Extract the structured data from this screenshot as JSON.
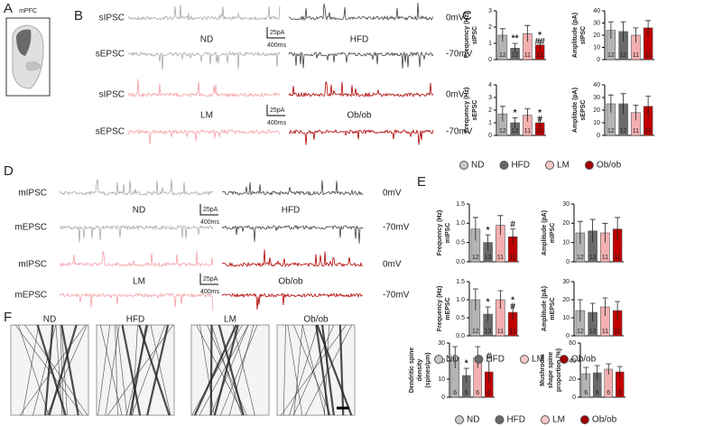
{
  "panel_labels": [
    "A",
    "B",
    "C",
    "D",
    "E",
    "F"
  ],
  "brain": {
    "label": "mPFC"
  },
  "traces": [
    {
      "rows": [
        "sIPSC",
        "sEPSC"
      ],
      "voltages": [
        "0mV",
        "-70mV"
      ],
      "groups": [
        "ND",
        "HFD"
      ],
      "scale_amp": "25pA",
      "scale_time": "400ms"
    },
    {
      "rows": [
        "sIPSC",
        "sEPSC"
      ],
      "voltages": [
        "0mV",
        "-70mV"
      ],
      "groups": [
        "LM",
        "Ob/ob"
      ],
      "scale_amp": "25pA",
      "scale_time": "400ms"
    },
    {
      "rows": [
        "mIPSC",
        "mEPSC"
      ],
      "voltages": [
        "0mV",
        "-70mV"
      ],
      "groups": [
        "ND",
        "HFD"
      ],
      "scale_amp": "25pA",
      "scale_time": "400ms"
    },
    {
      "rows": [
        "mIPSC",
        "mEPSC"
      ],
      "voltages": [
        "0mV",
        "-70mV"
      ],
      "groups": [
        "LM",
        "Ob/ob"
      ],
      "scale_amp": "25pA",
      "scale_time": "400ms"
    }
  ],
  "micrographs": [
    "ND",
    "HFD",
    "LM",
    "Ob/ob"
  ],
  "legends": [
    [
      {
        "label": "ND",
        "color": "#c8c8c8"
      },
      {
        "label": "HFD",
        "color": "#6a6a6a"
      },
      {
        "label": "LM",
        "color": "#f8c8c8"
      },
      {
        "label": "Ob/ob",
        "color": "#a00000"
      }
    ],
    [
      {
        "label": "ND",
        "color": "#c8c8c8"
      },
      {
        "label": "HFD",
        "color": "#6a6a6a"
      },
      {
        "label": "LM",
        "color": "#f8c8c8"
      },
      {
        "label": "Ob/ob",
        "color": "#a00000"
      }
    ],
    [
      {
        "label": "ND",
        "color": "#c8c8c8"
      },
      {
        "label": "HFD",
        "color": "#6a6a6a"
      },
      {
        "label": "LM",
        "color": "#f8c8c8"
      },
      {
        "label": "Ob/ob",
        "color": "#a00000"
      }
    ]
  ],
  "chart_data": [
    {
      "type": "bar",
      "ylabel": [
        "Frequency (Hz)",
        "sIPSC"
      ],
      "values": [
        1.5,
        0.7,
        1.6,
        0.9
      ],
      "errors": [
        0.4,
        0.3,
        0.5,
        0.3
      ],
      "colors": [
        "#b4b4b4",
        "#6a6a6a",
        "#f4b0b0",
        "#c00000"
      ],
      "n_labels": [
        12,
        12,
        11,
        11
      ],
      "annotations": [
        [],
        [
          "**"
        ],
        [],
        [
          "*",
          "##"
        ]
      ],
      "ylim": [
        0,
        3
      ],
      "yticks": [
        0,
        1,
        2,
        3
      ]
    },
    {
      "type": "bar",
      "ylabel": [
        "Amplitude (pA)",
        "sIPSC"
      ],
      "values": [
        24,
        23,
        20,
        26
      ],
      "errors": [
        7,
        8,
        6,
        6
      ],
      "colors": [
        "#b4b4b4",
        "#6a6a6a",
        "#f4b0b0",
        "#c00000"
      ],
      "n_labels": [
        12,
        12,
        11,
        11
      ],
      "annotations": [
        [],
        [],
        [],
        []
      ],
      "ylim": [
        0,
        40
      ],
      "yticks": [
        0,
        10,
        20,
        30,
        40
      ]
    },
    {
      "type": "bar",
      "ylabel": [
        "Frequency (Hz)",
        "sEPSC"
      ],
      "values": [
        1.7,
        1.0,
        1.6,
        1.0
      ],
      "errors": [
        0.6,
        0.4,
        0.5,
        0.4
      ],
      "colors": [
        "#b4b4b4",
        "#6a6a6a",
        "#f4b0b0",
        "#c00000"
      ],
      "n_labels": [
        12,
        12,
        11,
        11
      ],
      "annotations": [
        [],
        [
          "*"
        ],
        [],
        [
          "*",
          "#"
        ]
      ],
      "ylim": [
        0,
        4
      ],
      "yticks": [
        0,
        1,
        2,
        3,
        4
      ]
    },
    {
      "type": "bar",
      "ylabel": [
        "Amplitude (pA)",
        "sEPSC"
      ],
      "values": [
        25,
        25,
        18,
        23
      ],
      "errors": [
        7,
        8,
        6,
        8
      ],
      "colors": [
        "#b4b4b4",
        "#6a6a6a",
        "#f4b0b0",
        "#c00000"
      ],
      "n_labels": [
        12,
        12,
        11,
        11
      ],
      "annotations": [
        [],
        [],
        [],
        []
      ],
      "ylim": [
        0,
        40
      ],
      "yticks": [
        0,
        10,
        20,
        30,
        40
      ]
    },
    {
      "type": "bar",
      "ylabel": [
        "Frequency (Hz)",
        "mIPSC"
      ],
      "values": [
        0.85,
        0.5,
        0.95,
        0.65
      ],
      "errors": [
        0.3,
        0.2,
        0.25,
        0.2
      ],
      "colors": [
        "#b4b4b4",
        "#6a6a6a",
        "#f4b0b0",
        "#c00000"
      ],
      "n_labels": [
        12,
        13,
        11,
        11
      ],
      "annotations": [
        [],
        [
          "*"
        ],
        [],
        [
          "#"
        ]
      ],
      "ylim": [
        0,
        1.5
      ],
      "yticks": [
        {
          "value": 0,
          "label": "0.0"
        },
        0.5,
        {
          "value": 1,
          "label": "1.0"
        },
        1.5
      ]
    },
    {
      "type": "bar",
      "ylabel": [
        "Amplitude (pA)",
        "mIPSC"
      ],
      "values": [
        15,
        16,
        15,
        17
      ],
      "errors": [
        6,
        6,
        5,
        6
      ],
      "colors": [
        "#b4b4b4",
        "#6a6a6a",
        "#f4b0b0",
        "#c00000"
      ],
      "n_labels": [
        12,
        13,
        11,
        11
      ],
      "annotations": [
        [],
        [],
        [],
        []
      ],
      "ylim": [
        0,
        30
      ],
      "yticks": [
        0,
        10,
        20,
        30
      ]
    },
    {
      "type": "bar",
      "ylabel": [
        "Frequency (Hz)",
        "mEPSC"
      ],
      "values": [
        1.0,
        0.6,
        1.0,
        0.65
      ],
      "errors": [
        0.3,
        0.2,
        0.25,
        0.2
      ],
      "colors": [
        "#b4b4b4",
        "#6a6a6a",
        "#f4b0b0",
        "#c00000"
      ],
      "n_labels": [
        12,
        13,
        11,
        11
      ],
      "annotations": [
        [],
        [
          "*"
        ],
        [],
        [
          "*",
          "#"
        ]
      ],
      "ylim": [
        0,
        1.5
      ],
      "yticks": [
        {
          "value": 0,
          "label": "0.0"
        },
        0.5,
        {
          "value": 1,
          "label": "1.0"
        },
        1.5
      ]
    },
    {
      "type": "bar",
      "ylabel": [
        "Amplitude (pA)",
        "mEPSC"
      ],
      "values": [
        14,
        13,
        16,
        14
      ],
      "errors": [
        6,
        5,
        5,
        5
      ],
      "colors": [
        "#b4b4b4",
        "#6a6a6a",
        "#f4b0b0",
        "#c00000"
      ],
      "n_labels": [
        12,
        13,
        11,
        11
      ],
      "annotations": [
        [],
        [],
        [],
        []
      ],
      "ylim": [
        0,
        30
      ],
      "yticks": [
        0,
        10,
        20,
        30
      ]
    },
    {
      "type": "bar",
      "ylabel": [
        "Dendritic spine",
        "density",
        "(spines/μm)"
      ],
      "values": [
        22,
        12,
        22,
        14
      ],
      "errors": [
        6,
        4,
        6,
        6
      ],
      "colors": [
        "#b4b4b4",
        "#6a6a6a",
        "#f4b0b0",
        "#c00000"
      ],
      "n_labels": [
        6,
        6,
        6,
        6
      ],
      "annotations": [
        [],
        [
          "*"
        ],
        [],
        [
          "#"
        ]
      ],
      "ylim": [
        0,
        30
      ],
      "yticks": [
        0,
        10,
        20,
        30
      ]
    },
    {
      "type": "bar",
      "ylabel": [
        "Mushroom",
        "shape spine",
        "proportion (%)"
      ],
      "values": [
        26,
        27,
        31,
        28
      ],
      "errors": [
        7,
        8,
        6,
        6
      ],
      "colors": [
        "#b4b4b4",
        "#6a6a6a",
        "#f4b0b0",
        "#c00000"
      ],
      "n_labels": [
        6,
        6,
        6,
        6
      ],
      "annotations": [
        [],
        [],
        [],
        []
      ],
      "ylim": [
        0,
        60
      ],
      "yticks": [
        0,
        20,
        40,
        60
      ]
    }
  ]
}
